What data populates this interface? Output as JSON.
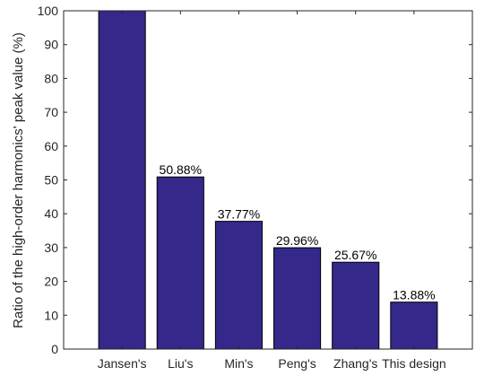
{
  "chart_data": {
    "type": "bar",
    "categories": [
      "Jansen's",
      "Liu's",
      "Min's",
      "Peng's",
      "Zhang's",
      "This design"
    ],
    "values": [
      100,
      50.88,
      37.77,
      29.96,
      25.67,
      13.88
    ],
    "data_labels": [
      "",
      "50.88%",
      "37.77%",
      "29.96%",
      "25.67%",
      "13.88%"
    ],
    "ylabel": "Ratio of the high-order harmonics' peak value (%)",
    "xlabel": "",
    "ylim": [
      0,
      100
    ],
    "yticks": [
      "0",
      "10",
      "20",
      "30",
      "40",
      "50",
      "60",
      "70",
      "80",
      "90",
      "100"
    ],
    "grid": false,
    "bar_color": "#34288a",
    "bar_edge_color": "#000000"
  }
}
